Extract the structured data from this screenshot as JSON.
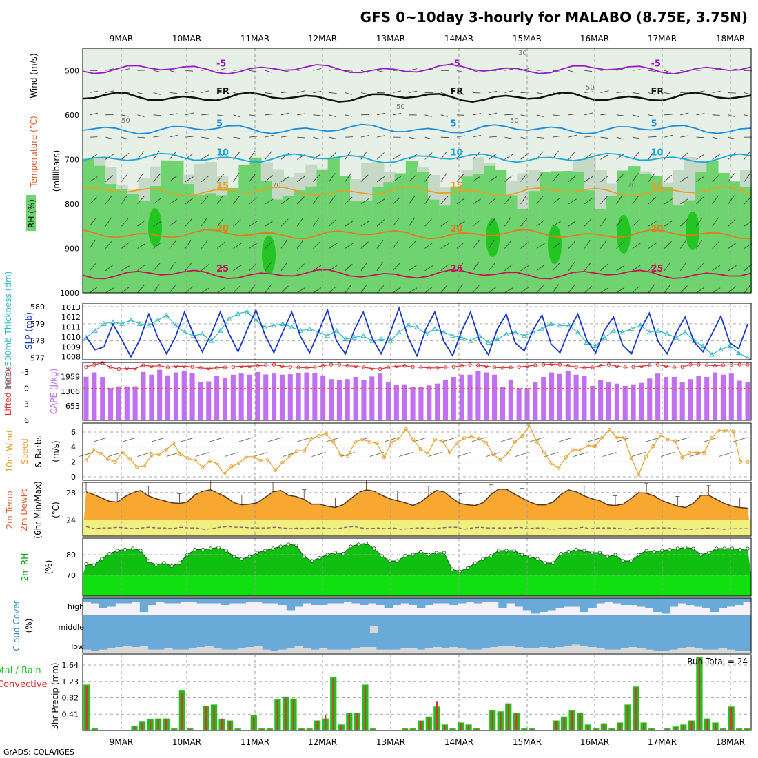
{
  "title": "GFS 0~10day 3-hourly for MALABO (8.75E, 3.75N)",
  "footer": "GrADS: COLA/IGES",
  "dates": [
    "9MAR",
    "10MAR",
    "11MAR",
    "12MAR",
    "13MAR",
    "14MAR",
    "15MAR",
    "16MAR",
    "17MAR",
    "18MAR"
  ],
  "colors": {
    "rh": "#6fd36f",
    "rh_mid": "#c6d8c6",
    "rh_light": "#e6f0e6",
    "rh_dark": "#22c522",
    "temp_purple": "#9a18c8",
    "temp_blue1": "#1a8ae0",
    "temp_blue2": "#1aa8d8",
    "temp_orange1": "#e8a020",
    "temp_orange2": "#e87818",
    "temp_red": "#c8105a",
    "thickness": "#30b8c8",
    "slp": "#1838c8",
    "cape": "#c070f0",
    "li": "#e03030",
    "wind": "#e8a030",
    "temp_fill": "#f8a830",
    "dew_fill": "#f0f080",
    "rh_fill": "#10c010",
    "rh_low": "#10e010",
    "cloud": "#6aaad8",
    "cloud_high_bg": "#f4f0f8",
    "precip_total": "#20c020",
    "precip_conv": "#e03030"
  },
  "chart_data": [
    {
      "type": "heatmap",
      "name": "upper-air",
      "ylabel": "(millibars)",
      "legend": [
        "RH (%)",
        "Temperature (°C)",
        "Wind (m/s)"
      ],
      "yticks": [
        500,
        600,
        700,
        800,
        900,
        1000
      ],
      "ylim": [
        450,
        1000
      ],
      "isotherms": [
        {
          "label": "-5",
          "level": 497
        },
        {
          "label": "FR",
          "level": 560
        },
        {
          "label": "5",
          "level": 632
        },
        {
          "label": "10",
          "level": 697
        },
        {
          "label": "15",
          "level": 772
        },
        {
          "label": "20",
          "level": 868
        },
        {
          "label": "25",
          "level": 958
        }
      ],
      "rh_contour_labels": [
        "30",
        "50",
        "70"
      ]
    },
    {
      "type": "line",
      "name": "thickness-slp",
      "ylabel_left": "1000-500mb Thickness (dm)",
      "ylabel_right": "SLP (mb)",
      "left_ticks": [
        577,
        578,
        579,
        580
      ],
      "right_ticks": [
        1008,
        1009,
        1010,
        1011,
        1012,
        1013
      ],
      "thickness": [
        578.2,
        578.6,
        579.0,
        579.1,
        579.0,
        579.2,
        579.0,
        578.9,
        579.2,
        579.5,
        578.9,
        578.5,
        578.3,
        578.4,
        578.0,
        578.6,
        579.3,
        579.6,
        579.7,
        579.2,
        578.8,
        578.9,
        579.0,
        578.8,
        578.6,
        578.7,
        578.5,
        578.3,
        578.6,
        578.1,
        578.2,
        578.3,
        578.0,
        578.1,
        578.0,
        578.5,
        578.9,
        578.8,
        578.4,
        578.7,
        578.5,
        578.3,
        578.2,
        578.0,
        578.3,
        577.9,
        578.1,
        578.4,
        578.5,
        578.3,
        578.5,
        578.7,
        579.0,
        578.9,
        578.9,
        578.5,
        577.9,
        577.7,
        578.2,
        578.6,
        578.5,
        578.7,
        578.9,
        578.5,
        578.6,
        578.4,
        578.2,
        578.5,
        578.0,
        577.7,
        577.2,
        577.5,
        577.7,
        577.3,
        577.0
      ],
      "slp": [
        1010,
        1008.7,
        1009,
        1011.3,
        1009.7,
        1008,
        1009.7,
        1012.3,
        1010,
        1008.3,
        1010,
        1012.5,
        1010.3,
        1008.5,
        1010.3,
        1012.5,
        1010.3,
        1008.5,
        1010.7,
        1012.7,
        1010.2,
        1008.4,
        1010.5,
        1012.5,
        1010,
        1008.4,
        1010.5,
        1012.7,
        1009.6,
        1008.3,
        1010.7,
        1012.5,
        1009.9,
        1008.3,
        1010.4,
        1012.9,
        1010,
        1008.1,
        1010.8,
        1012.5,
        1009.6,
        1008.1,
        1010.6,
        1012.5,
        1009.6,
        1008.2,
        1010.8,
        1012.3,
        1009.4,
        1008.6,
        1010.7,
        1012.2,
        1009.3,
        1008.4,
        1010.6,
        1012.3,
        1009.7,
        1008.4,
        1010.7,
        1012,
        1009.2,
        1008.3,
        1010.7,
        1012.4,
        1009.5,
        1008.3,
        1010.4,
        1012,
        1009.5,
        1008.5,
        1010.3,
        1012.1,
        1009.4,
        1008.8,
        1011.3
      ]
    },
    {
      "type": "bar",
      "name": "cape-li",
      "ylabel_left": "Lifted Index",
      "ylabel_right": "CAPE (J/kg)",
      "li_ticks": [
        -3,
        0,
        3,
        6
      ],
      "cape_ticks": [
        653,
        1306,
        1959
      ],
      "cape": [
        1960,
        2150,
        1950,
        1450,
        1530,
        1530,
        1530,
        2170,
        2050,
        2270,
        2020,
        2150,
        2230,
        2130,
        1730,
        1750,
        2000,
        1900,
        2050,
        2100,
        2050,
        2170,
        2060,
        2100,
        2050,
        2070,
        2120,
        2150,
        2120,
        2020,
        1850,
        1800,
        1850,
        1950,
        1800,
        1970,
        2100,
        1700,
        1580,
        1620,
        1500,
        1500,
        1570,
        1650,
        1800,
        1950,
        2050,
        2050,
        2200,
        2150,
        2050,
        1500,
        1830,
        1450,
        1450,
        1700,
        1950,
        2150,
        2080,
        2200,
        2050,
        1980,
        1550,
        1800,
        1700,
        1650,
        1550,
        1620,
        1680,
        1880,
        2100,
        1950,
        1950,
        1700,
        1850,
        2000,
        1950,
        2150,
        2050,
        2100,
        1780,
        1700
      ],
      "li": [
        -4,
        -4.4,
        -4.7,
        -3.9,
        -3.6,
        -3.7,
        -3.7,
        -4.3,
        -4.1,
        -4.2,
        -3.9,
        -4.1,
        -4.1,
        -4.0,
        -3.8,
        -3.7,
        -3.8,
        -3.9,
        -4.0,
        -4.1,
        -4.1,
        -4.2,
        -4.3,
        -4.4,
        -4.1,
        -4.0,
        -3.9,
        -3.8,
        -3.9,
        -4.2,
        -4.4,
        -4.4,
        -4.2,
        -4.1,
        -3.9,
        -3.7,
        -3.6,
        -3.9,
        -4.1,
        -4.2,
        -4.0,
        -3.9,
        -3.8,
        -3.8,
        -3.9,
        -4.0,
        -4.2,
        -4.4,
        -4.3,
        -4.1,
        -3.9,
        -3.8,
        -3.9,
        -4.0,
        -4.1,
        -4.3,
        -4.4,
        -4.5,
        -4.4,
        -4.2,
        -4.0,
        -3.8,
        -3.9,
        -4.2,
        -4.4,
        -4.1,
        -3.9,
        -4.0,
        -4.1,
        -4.3,
        -4.4,
        -4.1,
        -3.9,
        -4.0,
        -4.4,
        -4.4,
        -4.3,
        -4.2,
        -4.3,
        -4.4,
        -4.4,
        -4.4
      ]
    },
    {
      "type": "line",
      "name": "wind",
      "ylabel": "10m Wind Speed & Barbs (m/s)",
      "yticks": [
        0,
        2,
        4,
        6
      ],
      "values": [
        2.2,
        3.6,
        3.1,
        2.4,
        2.0,
        3.3,
        2.4,
        1.3,
        1.5,
        2.9,
        3.0,
        3.6,
        4.5,
        3.0,
        2.5,
        2.2,
        1.3,
        2.1,
        1.8,
        0.4,
        1.4,
        1.8,
        2.7,
        2.7,
        2.2,
        2.3,
        0.9,
        1.9,
        2.7,
        3.5,
        3.5,
        5.1,
        5.5,
        5.8,
        4.7,
        3.0,
        2.8,
        4.7,
        5.0,
        4.7,
        4.5,
        2.6,
        4.6,
        5.1,
        6.4,
        5.0,
        3.7,
        3.1,
        5.0,
        4.8,
        3.3,
        4.5,
        5.2,
        5.4,
        5.1,
        4.6,
        3.0,
        2.3,
        3.1,
        4.7,
        5.5,
        6.9,
        4.7,
        3.3,
        1.8,
        1.2,
        2.6,
        3.6,
        3.6,
        4.2,
        4.1,
        5.3,
        6.3,
        5.3,
        5.3,
        2.5,
        0.3,
        2.7,
        4.1,
        5.6,
        5.0,
        4.8,
        2.6,
        3.2,
        3.3,
        3.2,
        5.2,
        6.2,
        6.2,
        6.1,
        2.0,
        2.0
      ]
    },
    {
      "type": "area",
      "name": "temperature",
      "ylabel": "2m Temp 2m DewPt (6hr Min/Max) (°C)",
      "yticks": [
        24,
        28
      ],
      "temp": [
        28.1,
        27.7,
        27.2,
        26.7,
        26.6,
        27.4,
        28.0,
        28.3,
        27.5,
        27.1,
        26.8,
        26.5,
        26.4,
        26.6,
        27.7,
        28.2,
        28.4,
        27.9,
        27.3,
        26.5,
        26.2,
        26.3,
        26.5,
        27.3,
        28.1,
        28.3,
        27.6,
        27.4,
        27.0,
        26.3,
        26.3,
        26.0,
        25.8,
        26.2,
        27.1,
        28.0,
        28.4,
        28.2,
        27.6,
        27.1,
        26.8,
        26.5,
        26.1,
        26.6,
        27.5,
        28.3,
        28.1,
        27.2,
        26.4,
        26.2,
        26.1,
        26.5,
        27.7,
        28.5,
        28.5,
        27.8,
        27.2,
        26.6,
        26.2,
        26.2,
        26.6,
        27.7,
        28.4,
        28.1,
        27.5,
        27.1,
        26.8,
        26.2,
        26.1,
        26.3,
        27.1,
        28.0,
        27.9,
        27.5,
        26.8,
        26.4,
        26.0,
        25.8,
        26.4,
        27.6,
        27.6,
        27.0,
        26.4,
        26.0,
        25.8,
        25.7
      ],
      "dew": [
        23.0,
        22.7,
        22.8,
        22.8,
        22.9,
        22.8,
        22.7,
        22.8,
        22.9,
        22.8,
        22.8,
        22.7,
        22.9,
        22.8,
        22.8,
        22.6,
        22.7,
        22.9,
        23.0,
        22.9,
        22.9,
        22.8,
        22.8,
        22.8,
        22.9,
        22.8,
        22.7,
        22.8,
        22.7,
        22.8,
        22.8,
        22.7,
        22.7,
        22.9,
        23.0,
        22.8,
        22.7,
        22.8,
        22.7,
        22.8,
        22.6,
        22.7,
        22.8,
        22.8,
        22.7,
        22.8,
        22.9,
        22.9,
        22.6,
        22.8,
        22.9,
        22.8,
        22.8,
        22.8,
        22.8,
        22.9,
        22.7,
        22.8,
        22.8,
        22.6,
        22.7,
        22.8,
        22.7,
        22.9,
        22.7,
        22.8,
        22.8,
        22.8,
        22.7,
        22.6,
        22.8,
        22.7,
        22.8,
        22.8,
        22.8,
        22.7,
        22.6,
        22.6,
        22.7,
        22.8,
        22.7,
        22.6,
        22.7,
        22.7,
        22.7
      ]
    },
    {
      "type": "area",
      "name": "humidity",
      "ylabel": "2m RH (%)",
      "yticks": [
        70,
        80
      ],
      "values": [
        75.5,
        75,
        78,
        80.5,
        82,
        82.5,
        83,
        82,
        77,
        75,
        76,
        74.5,
        76,
        80,
        82.5,
        82.5,
        83,
        83.5,
        82,
        79,
        78,
        79,
        81,
        82,
        83,
        84,
        85,
        84.5,
        79,
        77,
        78.5,
        80,
        81,
        80.5,
        84,
        85,
        85.5,
        83,
        79.5,
        77,
        77,
        79.5,
        80,
        81.5,
        80,
        81,
        81,
        73,
        72,
        73.5,
        76,
        78,
        79.5,
        82,
        82,
        82,
        80,
        79,
        78,
        76,
        76,
        80.5,
        81.5,
        82.5,
        82,
        81,
        81,
        79,
        80,
        77,
        77,
        80,
        82,
        81.5,
        82,
        82.5,
        83,
        83.5,
        83,
        80,
        81,
        83,
        83,
        83,
        82.5,
        83
      ]
    },
    {
      "type": "area",
      "name": "cloud-cover",
      "ylabel": "Cloud Cover (%)",
      "rows": [
        "high",
        "middle",
        "low"
      ],
      "high_hang": [
        0.2,
        0.3,
        0.6,
        0.5,
        0.3,
        0.3,
        0.2,
        0.8,
        0.4,
        0.2,
        0.3,
        0.3,
        0.2,
        0.2,
        0.3,
        0.3,
        0.3,
        0.4,
        0.3,
        0.3,
        0.2,
        0.2,
        0.3,
        0.3,
        0.4,
        0.7,
        0.5,
        0.3,
        0.4,
        0.4,
        0.3,
        0.3,
        0.2,
        0.3,
        0.4,
        0.3,
        0.4,
        0.6,
        0.4,
        0.3,
        0.4,
        0.6,
        0.4,
        0.3,
        0.3,
        0.4,
        0.3,
        0.2,
        0.3,
        0.2,
        0.2,
        0.6,
        0.3,
        0.5,
        0.7,
        0.9,
        0.8,
        0.7,
        0.6,
        0.5,
        0.5,
        0.8,
        0.6,
        0.3,
        0.2,
        0.3,
        0.4,
        0.4,
        0.5,
        0.6,
        0.8,
        0.9,
        0.5,
        0.3,
        0.4,
        0.5,
        0.6,
        0.8,
        0.6,
        0.5,
        0.4,
        0.2
      ],
      "low_fill": [
        0.3,
        0.2,
        0.3,
        0.4,
        0.5,
        0.6,
        0.5,
        0.6,
        0.3,
        0.3,
        0.4,
        0.3,
        0.3,
        0.4,
        0.5,
        0.6,
        0.4,
        0.3,
        0.3,
        0.4,
        0.5,
        0.6,
        0.3,
        0.2,
        0.3,
        0.4,
        0.6,
        0.4,
        0.3,
        0.4,
        0.3,
        0.3,
        0.3,
        0.4,
        0.5,
        0.5,
        0.3,
        0.3,
        0.3,
        0.4,
        0.4,
        0.3,
        0.4,
        0.5,
        0.4,
        0.5,
        0.4,
        0.3,
        0.3,
        0.4,
        0.5,
        0.6,
        0.6,
        0.5,
        0.4,
        0.4,
        0.5,
        0.4,
        0.5,
        0.6,
        0.7,
        0.6,
        0.5,
        0.4,
        0.3,
        0.3,
        0.4,
        0.5,
        0.4,
        0.3,
        0.2,
        0.2,
        0.3,
        0.4,
        0.5,
        0.4,
        0.3,
        0.3,
        0.4,
        0.3,
        0.2,
        0.2
      ]
    },
    {
      "type": "bar",
      "name": "precip",
      "ylabel": "3hr Precip (mm)",
      "legend_total": "Total / Rain",
      "legend_conv": "Convective",
      "run_total": "Run Total = 24",
      "yticks": [
        0.41,
        0.82,
        1.23,
        1.64
      ],
      "ylim": [
        0,
        1.9
      ],
      "total": [
        1.15,
        0.05,
        0,
        0,
        0,
        0,
        0.12,
        0.22,
        0.28,
        0.3,
        0.3,
        0.05,
        1.0,
        0.05,
        0,
        0.62,
        0.65,
        0.28,
        0.25,
        0.05,
        0,
        0.38,
        0.05,
        0.05,
        0.78,
        0.85,
        0.8,
        0.05,
        0.05,
        0.25,
        0.3,
        1.33,
        0.15,
        0.45,
        0.45,
        1.15,
        0.05,
        0,
        0,
        0,
        0.05,
        0.05,
        0.25,
        0.35,
        0.6,
        0.15,
        0.05,
        0.2,
        0.15,
        0.05,
        0,
        0.5,
        0.48,
        0.68,
        0.45,
        0.05,
        0.05,
        0,
        0,
        0.25,
        0.35,
        0.5,
        0.45,
        0.15,
        0.05,
        0.18,
        0.05,
        0.2,
        0.65,
        1.1,
        0.2,
        0.05,
        0,
        0.05,
        0.1,
        0.15,
        0.25,
        1.85,
        0.3,
        0.2,
        0.05,
        0.6,
        0.05,
        0.05
      ],
      "convective": [
        1.12,
        0.03,
        0,
        0,
        0,
        0,
        0.1,
        0.2,
        0.26,
        0.28,
        0.28,
        0.04,
        0.95,
        0.04,
        0,
        0.6,
        0.62,
        0.3,
        0.22,
        0.04,
        0,
        0.36,
        0.04,
        0.04,
        0.75,
        0.82,
        0.78,
        0.04,
        0.04,
        0.25,
        0.38,
        1.3,
        0.13,
        0.43,
        0.43,
        1.12,
        0.04,
        0,
        0,
        0,
        0.04,
        0.04,
        0.23,
        0.33,
        0.72,
        0.13,
        0.04,
        0.18,
        0.13,
        0.04,
        0,
        0.48,
        0.46,
        0.66,
        0.43,
        0.04,
        0.04,
        0,
        0,
        0.23,
        0.33,
        0.48,
        0.43,
        0.13,
        0.04,
        0.16,
        0.04,
        0.18,
        0.63,
        1.08,
        0.18,
        0.04,
        0,
        0.04,
        0.08,
        0.13,
        0.23,
        1.82,
        0.28,
        0.18,
        0.04,
        0.58,
        0.04,
        0.04
      ]
    }
  ]
}
